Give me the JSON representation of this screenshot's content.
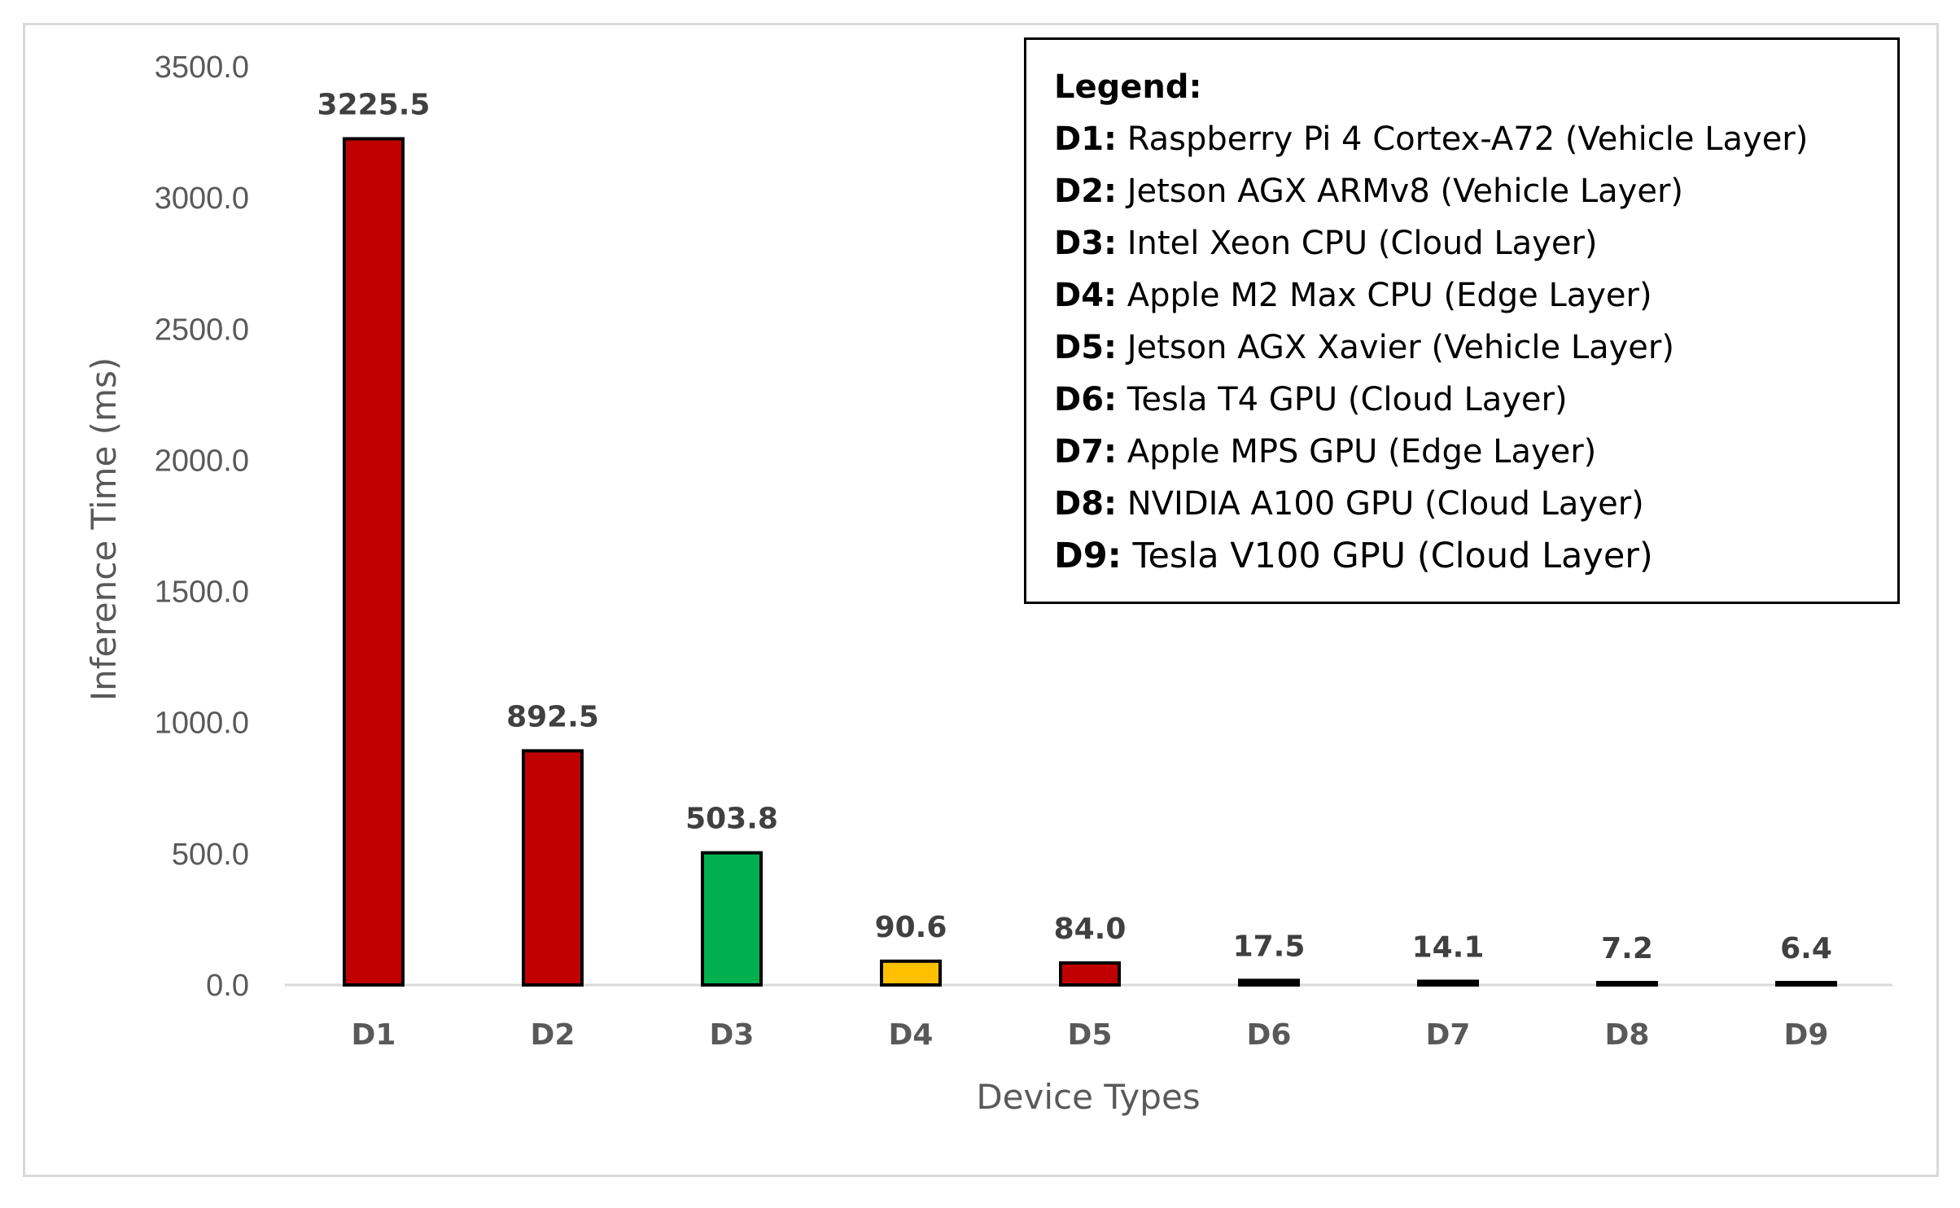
{
  "chart_data": {
    "type": "bar",
    "categories": [
      "D1",
      "D2",
      "D3",
      "D4",
      "D5",
      "D6",
      "D7",
      "D8",
      "D9"
    ],
    "values": [
      3225.5,
      892.5,
      503.8,
      90.6,
      84.0,
      17.5,
      14.1,
      7.2,
      6.4
    ],
    "value_labels": [
      "3225.5",
      "892.5",
      "503.8",
      "90.6",
      "84.0",
      "17.5",
      "14.1",
      "7.2",
      "6.4"
    ],
    "bar_colors": [
      "#c00000",
      "#c00000",
      "#00b050",
      "#ffc000",
      "#c00000",
      "#000000",
      "#000000",
      "#000000",
      "#000000"
    ],
    "xlabel": "Device Types",
    "ylabel": "Inference Time (ms)",
    "ylim": [
      0,
      3500
    ],
    "yticks": [
      "0.0",
      "500.0",
      "1000.0",
      "1500.0",
      "2000.0",
      "2500.0",
      "3000.0",
      "3500.0"
    ],
    "grid": false,
    "legend_placement": "top-right",
    "legend": {
      "title": "Legend:",
      "entries": [
        {
          "key": "D1:",
          "text": " Raspberry Pi 4 Cortex-A72 (Vehicle Layer)"
        },
        {
          "key": "D2:",
          "text": " Jetson AGX ARMv8 (Vehicle Layer)"
        },
        {
          "key": "D3:",
          "text": " Intel Xeon CPU (Cloud Layer)"
        },
        {
          "key": "D4:",
          "text": " Apple M2 Max CPU (Edge Layer)"
        },
        {
          "key": "D5:",
          "text": " Jetson AGX Xavier (Vehicle Layer)"
        },
        {
          "key": "D6:",
          "text": " Tesla T4 GPU (Cloud Layer)"
        },
        {
          "key": "D7:",
          "text": " Apple MPS GPU (Edge Layer)"
        },
        {
          "key": "D8:",
          "text": " NVIDIA A100 GPU (Cloud Layer)"
        },
        {
          "key": "D9:",
          "text": " Tesla V100 GPU (Cloud Layer)"
        }
      ]
    }
  }
}
